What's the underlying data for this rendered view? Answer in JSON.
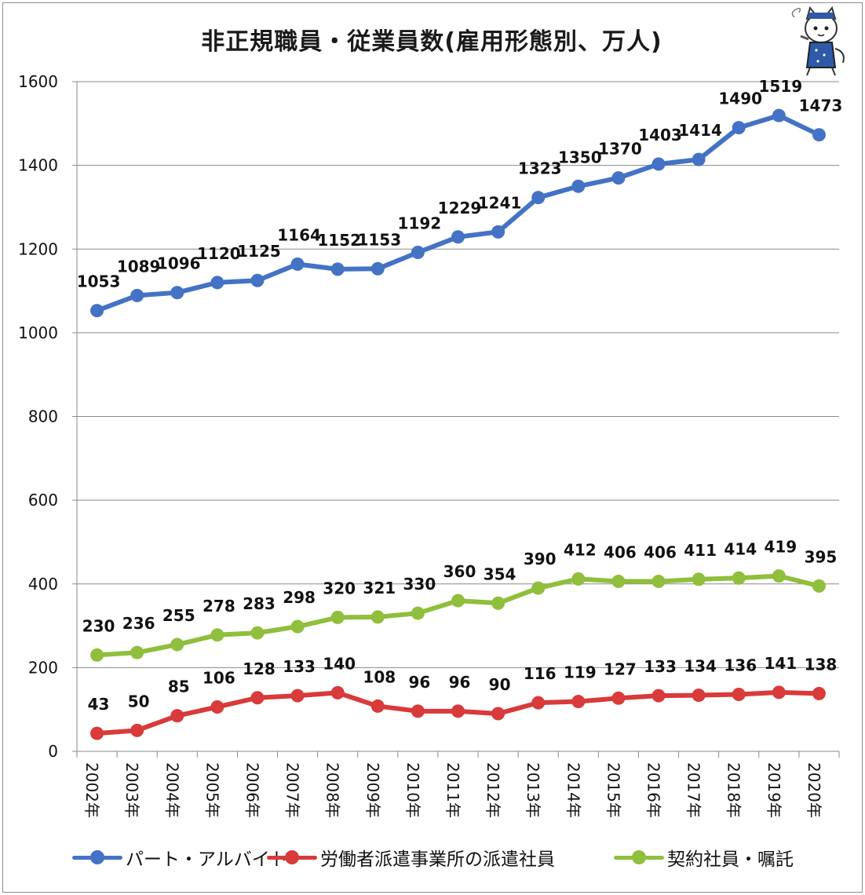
{
  "chart_data": {
    "type": "line",
    "title": "非正規職員・従業員数(雇用形態別、万人)",
    "categories": [
      "2002年",
      "2003年",
      "2004年",
      "2005年",
      "2006年",
      "2007年",
      "2008年",
      "2009年",
      "2010年",
      "2011年",
      "2012年",
      "2013年",
      "2014年",
      "2015年",
      "2016年",
      "2017年",
      "2018年",
      "2019年",
      "2020年"
    ],
    "ylim": [
      0,
      1600
    ],
    "yticks": [
      0,
      200,
      400,
      600,
      800,
      1000,
      1200,
      1400,
      1600
    ],
    "grid": true,
    "legend_position": "bottom",
    "series": [
      {
        "name": "パート・アルバイト",
        "color": "#4472c4",
        "values": [
          1053,
          1089,
          1096,
          1120,
          1125,
          1164,
          1152,
          1153,
          1192,
          1229,
          1241,
          1323,
          1350,
          1370,
          1403,
          1414,
          1490,
          1519,
          1473
        ]
      },
      {
        "name": "労働者派遣事業所の派遣社員",
        "color": "#d93a3a",
        "values": [
          43,
          50,
          85,
          106,
          128,
          133,
          140,
          108,
          96,
          96,
          90,
          116,
          119,
          127,
          133,
          134,
          136,
          141,
          138
        ]
      },
      {
        "name": "契約社員・嘱託",
        "color": "#8fbf3c",
        "values": [
          230,
          236,
          255,
          278,
          283,
          298,
          320,
          321,
          330,
          360,
          354,
          390,
          412,
          406,
          406,
          411,
          414,
          419,
          395
        ]
      }
    ]
  }
}
